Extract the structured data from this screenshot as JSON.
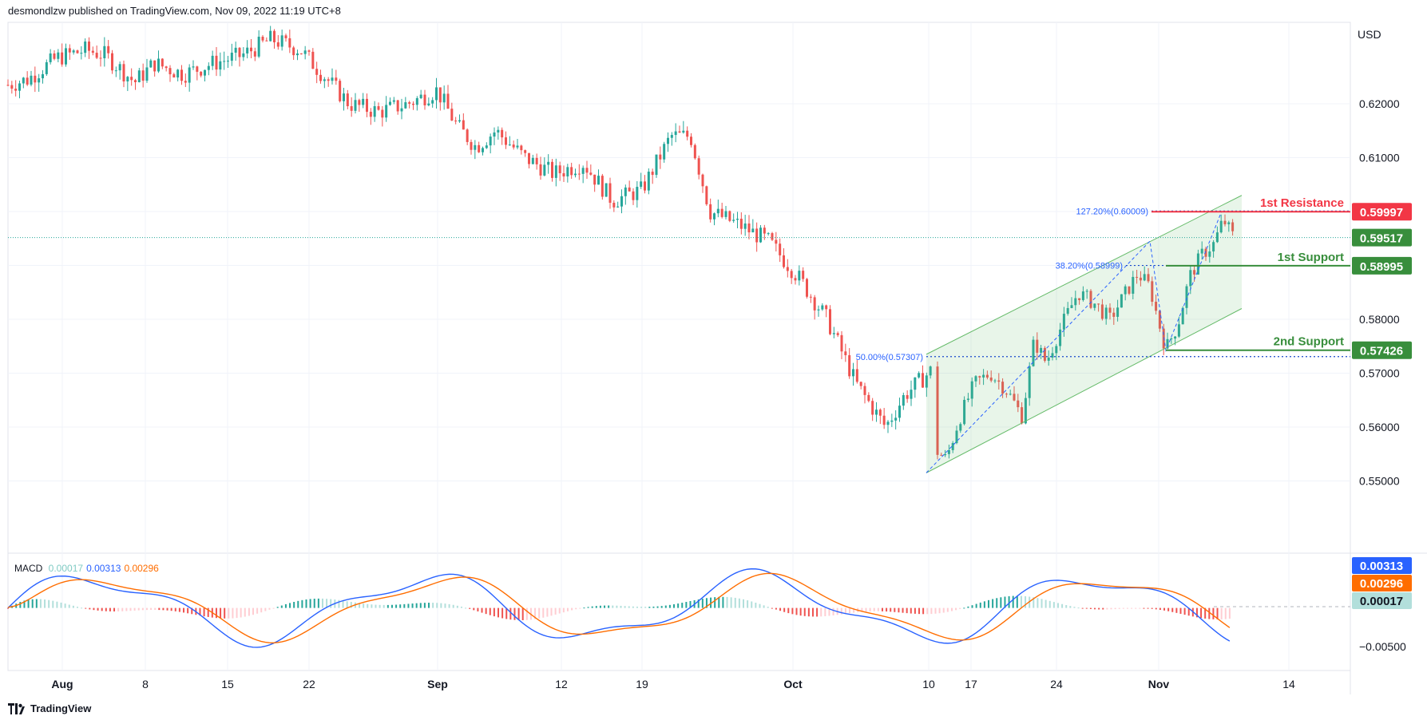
{
  "header": {
    "text": "desmondlzw published on TradingView.com, Nov 09, 2022 11:19 UTC+8"
  },
  "footer": {
    "logo_text": "TradingView"
  },
  "colors": {
    "bull": "#26a69a",
    "bear": "#ef5350",
    "grid": "#f0f3fa",
    "resistance": "#f23645",
    "support": "#388e3c",
    "channel": "#66bb6a",
    "fib": "#2962ff",
    "macd_line": "#2962ff",
    "signal_line": "#ff6d00",
    "hist_pos": "#26a69a",
    "hist_neg": "#ef5350",
    "hist_pos_light": "#b2dfdb",
    "hist_neg_light": "#ffcdd2"
  },
  "chart_data": [
    {
      "type": "candlestick",
      "currency_label": "USD",
      "y_ticks": [
        "0.62000",
        "0.61000",
        "0.60000",
        "0.59000",
        "0.58000",
        "0.57000",
        "0.56000",
        "0.55000"
      ],
      "x_ticks": [
        "Aug",
        "8",
        "15",
        "22",
        "Sep",
        "12",
        "19",
        "Oct",
        "10",
        "17",
        "24",
        "Nov",
        "14"
      ],
      "price_path": [
        {
          "t": 0,
          "v": 0.6235
        },
        {
          "t": 0.02,
          "v": 0.6245
        },
        {
          "t": 0.05,
          "v": 0.6285
        },
        {
          "t": 0.08,
          "v": 0.63
        },
        {
          "t": 0.1,
          "v": 0.629
        },
        {
          "t": 0.13,
          "v": 0.624
        },
        {
          "t": 0.15,
          "v": 0.6275
        },
        {
          "t": 0.18,
          "v": 0.6255
        },
        {
          "t": 0.21,
          "v": 0.6275
        },
        {
          "t": 0.24,
          "v": 0.629
        },
        {
          "t": 0.27,
          "v": 0.632
        },
        {
          "t": 0.3,
          "v": 0.63
        },
        {
          "t": 0.33,
          "v": 0.624
        },
        {
          "t": 0.35,
          "v": 0.62
        },
        {
          "t": 0.38,
          "v": 0.6185
        },
        {
          "t": 0.41,
          "v": 0.62
        },
        {
          "t": 0.44,
          "v": 0.6225
        },
        {
          "t": 0.46,
          "v": 0.616
        },
        {
          "t": 0.48,
          "v": 0.612
        },
        {
          "t": 0.5,
          "v": 0.615
        },
        {
          "t": 0.53,
          "v": 0.61
        },
        {
          "t": 0.56,
          "v": 0.607
        },
        {
          "t": 0.59,
          "v": 0.609
        },
        {
          "t": 0.62,
          "v": 0.602
        },
        {
          "t": 0.65,
          "v": 0.604
        },
        {
          "t": 0.68,
          "v": 0.614
        },
        {
          "t": 0.7,
          "v": 0.614
        },
        {
          "t": 0.72,
          "v": 0.6
        },
        {
          "t": 0.75,
          "v": 0.5975
        },
        {
          "t": 0.78,
          "v": 0.5945
        },
        {
          "t": 0.81,
          "v": 0.588
        },
        {
          "t": 0.84,
          "v": 0.58
        },
        {
          "t": 0.87,
          "v": 0.568
        },
        {
          "t": 0.9,
          "v": 0.56
        },
        {
          "t": 0.92,
          "v": 0.566
        },
        {
          "t": 0.95,
          "v": 0.571
        }
      ],
      "levels": [
        {
          "name": "1st Resistance",
          "value": 0.59997,
          "label": "0.59997",
          "kind": "resistance"
        },
        {
          "name": "1st Support",
          "value": 0.58995,
          "label": "0.58995",
          "kind": "support"
        },
        {
          "name": "2nd Support",
          "value": 0.57426,
          "label": "0.57426",
          "kind": "support"
        }
      ],
      "current_price": {
        "value": 0.59517,
        "label": "0.59517"
      },
      "fib_labels": [
        {
          "text": "127.20%(0.60009)",
          "value": 0.60009
        },
        {
          "text": "38.20%(0.58999)",
          "value": 0.58999
        },
        {
          "text": "50.00%(0.57307)",
          "value": 0.57307
        }
      ],
      "channel": {
        "lower_start": 0.5515,
        "lower_end": 0.582,
        "upper_start": 0.5735,
        "upper_end": 0.603
      }
    },
    {
      "type": "macd",
      "title": "MACD",
      "values": [
        {
          "name": "histogram",
          "label": "0.00017",
          "value": 0.00017
        },
        {
          "name": "macd",
          "label": "0.00313",
          "value": 0.00313
        },
        {
          "name": "signal",
          "label": "0.00296",
          "value": 0.00296
        }
      ],
      "y_ticks": [
        "0.00313",
        "0.00296",
        "0.00017",
        "−0.00500"
      ]
    }
  ]
}
